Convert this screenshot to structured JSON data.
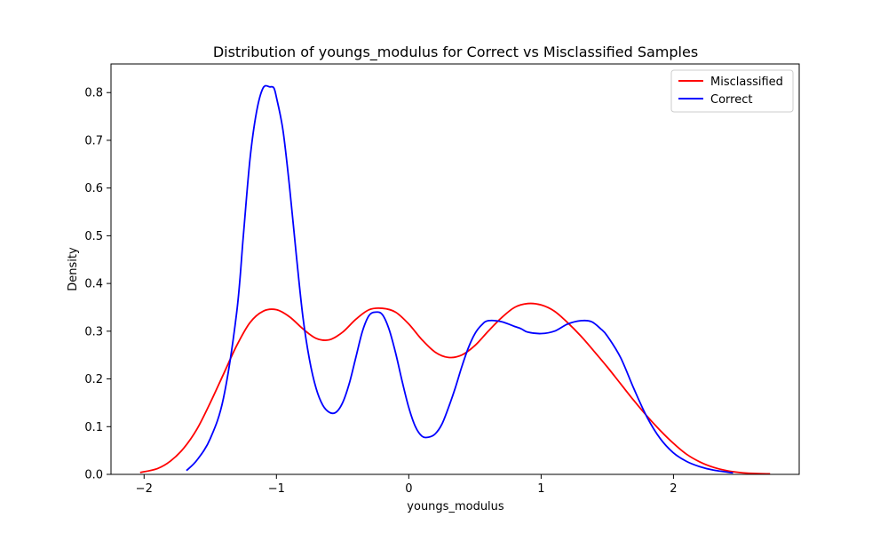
{
  "chart_data": {
    "type": "line",
    "title": "Distribution of youngs_modulus for Correct vs Misclassified Samples",
    "xlabel": "youngs_modulus",
    "ylabel": "Density",
    "xlim": [
      -2.25,
      2.95
    ],
    "ylim": [
      0,
      0.86
    ],
    "x_ticks": [
      -2,
      -1,
      0,
      1,
      2
    ],
    "x_tick_labels": [
      "−2",
      "−1",
      "0",
      "1",
      "2"
    ],
    "y_ticks": [
      0.0,
      0.1,
      0.2,
      0.3,
      0.4,
      0.5,
      0.6,
      0.7,
      0.8
    ],
    "y_tick_labels": [
      "0.0",
      "0.1",
      "0.2",
      "0.3",
      "0.4",
      "0.5",
      "0.6",
      "0.7",
      "0.8"
    ],
    "grid": false,
    "legend_position": "top-right",
    "series": [
      {
        "name": "Misclassified",
        "color": "#ff0000",
        "x": [
          -2.03,
          -1.9,
          -1.8,
          -1.7,
          -1.6,
          -1.5,
          -1.4,
          -1.3,
          -1.2,
          -1.1,
          -1.0,
          -0.9,
          -0.8,
          -0.7,
          -0.6,
          -0.5,
          -0.4,
          -0.3,
          -0.2,
          -0.1,
          0.0,
          0.1,
          0.2,
          0.3,
          0.4,
          0.5,
          0.6,
          0.7,
          0.8,
          0.9,
          1.0,
          1.1,
          1.2,
          1.3,
          1.4,
          1.5,
          1.6,
          1.7,
          1.8,
          1.9,
          2.0,
          2.1,
          2.2,
          2.3,
          2.4,
          2.5,
          2.6,
          2.73
        ],
        "y": [
          0.004,
          0.012,
          0.028,
          0.055,
          0.095,
          0.15,
          0.21,
          0.27,
          0.318,
          0.342,
          0.345,
          0.33,
          0.305,
          0.285,
          0.282,
          0.298,
          0.325,
          0.345,
          0.348,
          0.34,
          0.315,
          0.282,
          0.256,
          0.245,
          0.25,
          0.27,
          0.3,
          0.328,
          0.35,
          0.358,
          0.355,
          0.342,
          0.318,
          0.29,
          0.258,
          0.225,
          0.19,
          0.155,
          0.122,
          0.092,
          0.065,
          0.042,
          0.026,
          0.015,
          0.008,
          0.004,
          0.002,
          0.001
        ]
      },
      {
        "name": "Correct",
        "color": "#0000ff",
        "x": [
          -1.68,
          -1.6,
          -1.5,
          -1.4,
          -1.3,
          -1.25,
          -1.2,
          -1.15,
          -1.1,
          -1.05,
          -1.02,
          -1.0,
          -0.95,
          -0.9,
          -0.85,
          -0.8,
          -0.75,
          -0.7,
          -0.65,
          -0.6,
          -0.55,
          -0.5,
          -0.45,
          -0.4,
          -0.35,
          -0.3,
          -0.25,
          -0.2,
          -0.15,
          -0.1,
          -0.05,
          0.0,
          0.05,
          0.1,
          0.15,
          0.2,
          0.25,
          0.3,
          0.35,
          0.4,
          0.45,
          0.5,
          0.55,
          0.6,
          0.7,
          0.8,
          0.85,
          0.9,
          1.0,
          1.1,
          1.2,
          1.3,
          1.38,
          1.45,
          1.5,
          1.6,
          1.7,
          1.8,
          1.9,
          2.0,
          2.1,
          2.2,
          2.3,
          2.45
        ],
        "y": [
          0.008,
          0.03,
          0.075,
          0.16,
          0.34,
          0.5,
          0.66,
          0.76,
          0.81,
          0.812,
          0.81,
          0.79,
          0.72,
          0.6,
          0.46,
          0.33,
          0.24,
          0.18,
          0.145,
          0.13,
          0.13,
          0.15,
          0.19,
          0.245,
          0.3,
          0.333,
          0.34,
          0.335,
          0.305,
          0.255,
          0.195,
          0.14,
          0.1,
          0.08,
          0.078,
          0.085,
          0.105,
          0.14,
          0.18,
          0.225,
          0.265,
          0.295,
          0.313,
          0.322,
          0.32,
          0.31,
          0.305,
          0.298,
          0.295,
          0.3,
          0.315,
          0.322,
          0.32,
          0.305,
          0.29,
          0.245,
          0.18,
          0.12,
          0.075,
          0.045,
          0.027,
          0.016,
          0.009,
          0.003
        ]
      }
    ]
  }
}
